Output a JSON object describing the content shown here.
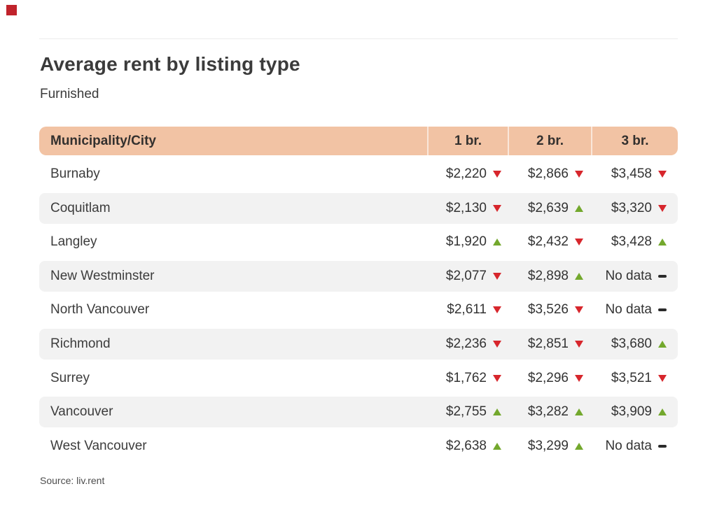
{
  "title": "Average rent by listing type",
  "subtitle": "Furnished",
  "source": "Source: liv.rent",
  "colors": {
    "header_bg": "#f2c3a4",
    "shaded_row": "#f2f2f2",
    "up_arrow": "#73a82d",
    "down_arrow": "#d7262c",
    "no_data_dash": "#2b2b2b",
    "accent_square": "#c0232b",
    "text": "#3b3b3b"
  },
  "table": {
    "header": {
      "city": "Municipality/City",
      "col1": "1 br.",
      "col2": "2 br.",
      "col3": "3 br."
    },
    "rows": [
      {
        "city": "Burnaby",
        "v1": "$2,220",
        "t1": "down",
        "v2": "$2,866",
        "t2": "down",
        "v3": "$3,458",
        "t3": "down"
      },
      {
        "city": "Coquitlam",
        "v1": "$2,130",
        "t1": "down",
        "v2": "$2,639",
        "t2": "up",
        "v3": "$3,320",
        "t3": "down"
      },
      {
        "city": "Langley",
        "v1": "$1,920",
        "t1": "up",
        "v2": "$2,432",
        "t2": "down",
        "v3": "$3,428",
        "t3": "up"
      },
      {
        "city": "New Westminster",
        "v1": "$2,077",
        "t1": "down",
        "v2": "$2,898",
        "t2": "up",
        "v3": "No data",
        "t3": "none"
      },
      {
        "city": "North Vancouver",
        "v1": "$2,611",
        "t1": "down",
        "v2": "$3,526",
        "t2": "down",
        "v3": "No data",
        "t3": "none"
      },
      {
        "city": "Richmond",
        "v1": "$2,236",
        "t1": "down",
        "v2": "$2,851",
        "t2": "down",
        "v3": "$3,680",
        "t3": "up"
      },
      {
        "city": "Surrey",
        "v1": "$1,762",
        "t1": "down",
        "v2": "$2,296",
        "t2": "down",
        "v3": "$3,521",
        "t3": "down"
      },
      {
        "city": "Vancouver",
        "v1": "$2,755",
        "t1": "up",
        "v2": "$3,282",
        "t2": "up",
        "v3": "$3,909",
        "t3": "up"
      },
      {
        "city": "West Vancouver",
        "v1": "$2,638",
        "t1": "up",
        "v2": "$3,299",
        "t2": "up",
        "v3": "No data",
        "t3": "none"
      }
    ]
  },
  "chart_data": {
    "type": "table",
    "title": "Average rent by listing type",
    "subtitle": "Furnished",
    "columns": [
      "Municipality/City",
      "1 br.",
      "2 br.",
      "3 br."
    ],
    "rows": [
      [
        "Burnaby",
        2220,
        2866,
        3458
      ],
      [
        "Coquitlam",
        2130,
        2639,
        3320
      ],
      [
        "Langley",
        1920,
        2432,
        3428
      ],
      [
        "New Westminster",
        2077,
        2898,
        null
      ],
      [
        "North Vancouver",
        2611,
        3526,
        null
      ],
      [
        "Richmond",
        2236,
        2851,
        3680
      ],
      [
        "Surrey",
        1762,
        2296,
        3521
      ],
      [
        "Vancouver",
        2755,
        3282,
        3909
      ],
      [
        "West Vancouver",
        2638,
        3299,
        null
      ]
    ],
    "trends": [
      [
        "down",
        "down",
        "down"
      ],
      [
        "down",
        "up",
        "down"
      ],
      [
        "up",
        "down",
        "up"
      ],
      [
        "down",
        "up",
        "none"
      ],
      [
        "down",
        "down",
        "none"
      ],
      [
        "down",
        "down",
        "up"
      ],
      [
        "down",
        "down",
        "down"
      ],
      [
        "up",
        "up",
        "up"
      ],
      [
        "up",
        "up",
        "none"
      ]
    ],
    "no_data_label": "No data",
    "currency": "$",
    "source": "Source: liv.rent"
  }
}
